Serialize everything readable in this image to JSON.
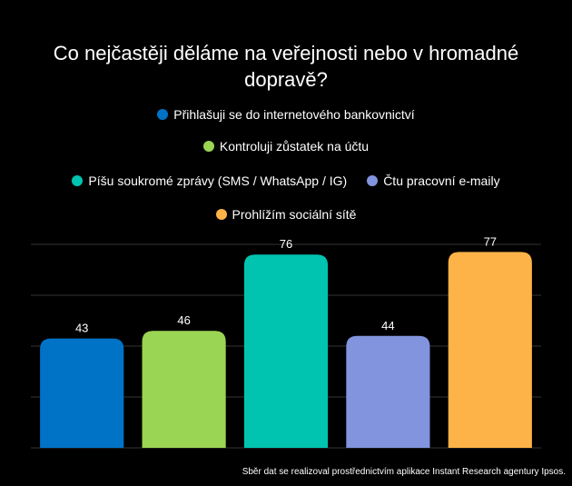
{
  "chart_data": {
    "type": "bar",
    "title": "Co nejčastěji děláme na veřejnosti nebo v hromadné dopravě?",
    "categories": [
      "Přihlašuji se do internetového bankovnictví",
      "Kontroluji zůstatek na účtu",
      "Píšu soukromé zprávy (SMS / WhatsApp / IG)",
      "Čtu pracovní e-maily",
      "Prohlížím sociální sítě"
    ],
    "values": [
      43,
      46,
      76,
      44,
      77
    ],
    "colors": [
      "#0073c7",
      "#9ad553",
      "#00c4b0",
      "#8294dd",
      "#fdb347"
    ],
    "ylim": [
      0,
      80
    ],
    "gridlines": [
      20,
      40,
      60,
      80
    ],
    "grid": true,
    "legend_position": "top",
    "xlabel": "",
    "ylabel": ""
  },
  "footer": "Sběr dat se realizoval prostřednictvím aplikace Instant Research agentury Ipsos."
}
